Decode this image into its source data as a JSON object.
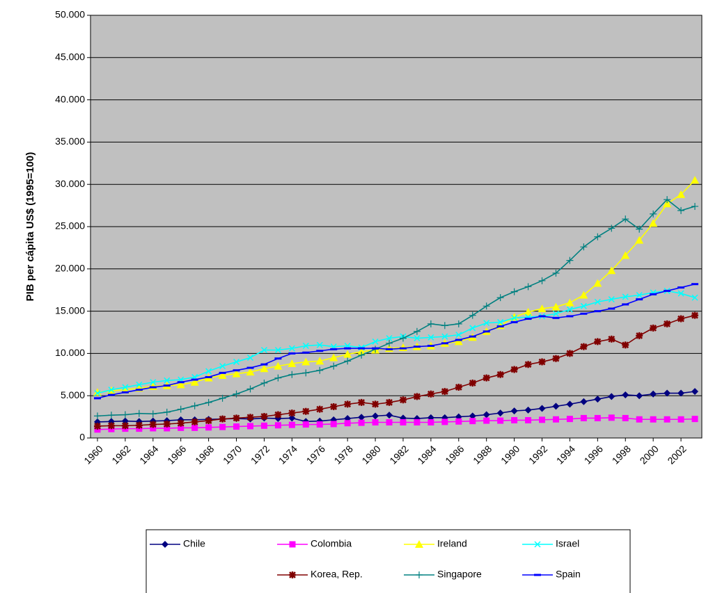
{
  "chart_data": {
    "type": "line",
    "y_label": "PIB per cápita US$ (1995=100)",
    "x": [
      1960,
      1961,
      1962,
      1963,
      1964,
      1965,
      1966,
      1967,
      1968,
      1969,
      1970,
      1971,
      1972,
      1973,
      1974,
      1975,
      1976,
      1977,
      1978,
      1979,
      1980,
      1981,
      1982,
      1983,
      1984,
      1985,
      1986,
      1987,
      1988,
      1989,
      1990,
      1991,
      1992,
      1993,
      1994,
      1995,
      1996,
      1997,
      1998,
      1999,
      2000,
      2001,
      2002,
      2003
    ],
    "xlim": [
      1959.5,
      2003.5
    ],
    "xticks": [
      1960,
      1962,
      1964,
      1966,
      1968,
      1970,
      1972,
      1974,
      1976,
      1978,
      1980,
      1982,
      1984,
      1986,
      1988,
      1990,
      1992,
      1994,
      1996,
      1998,
      2000,
      2002
    ],
    "ylim": [
      0,
      50000
    ],
    "yticks": [
      0,
      {
        "value": 5000,
        "label": "5.000"
      },
      {
        "value": 10000,
        "label": "10.000"
      },
      {
        "value": 15000,
        "label": "15.000"
      },
      {
        "value": 20000,
        "label": "20.000"
      },
      {
        "value": 25000,
        "label": "25.000"
      },
      {
        "value": 30000,
        "label": "30.000"
      },
      {
        "value": 35000,
        "label": "35.000"
      },
      {
        "value": 40000,
        "label": "40.000"
      },
      {
        "value": 45000,
        "label": "45.000"
      },
      {
        "value": 50000,
        "label": "50.000"
      }
    ],
    "grid": true,
    "plot_background": "#c0c0c0",
    "series": [
      {
        "name": "Chile",
        "color": "#000080",
        "marker": "diamond",
        "values": [
          1900,
          1950,
          2000,
          1950,
          2000,
          2050,
          2150,
          2150,
          2200,
          2250,
          2300,
          2250,
          2350,
          2300,
          2350,
          1950,
          2000,
          2150,
          2300,
          2450,
          2600,
          2700,
          2350,
          2300,
          2400,
          2400,
          2500,
          2600,
          2750,
          2950,
          3200,
          3300,
          3500,
          3750,
          4000,
          4300,
          4600,
          4900,
          5100,
          5000,
          5200,
          5300,
          5300,
          5500
        ]
      },
      {
        "name": "Colombia",
        "color": "#ff00ff",
        "marker": "square",
        "values": [
          1000,
          1050,
          1100,
          1100,
          1150,
          1150,
          1200,
          1200,
          1250,
          1300,
          1350,
          1400,
          1450,
          1500,
          1550,
          1600,
          1600,
          1650,
          1750,
          1800,
          1850,
          1850,
          1850,
          1850,
          1850,
          1900,
          1950,
          2000,
          2050,
          2050,
          2100,
          2100,
          2150,
          2200,
          2250,
          2350,
          2350,
          2400,
          2350,
          2200,
          2200,
          2200,
          2200,
          2250
        ]
      },
      {
        "name": "Ireland",
        "color": "#ffff00",
        "marker": "triangle",
        "values": [
          5400,
          5600,
          5700,
          5900,
          6100,
          6200,
          6300,
          6600,
          7100,
          7400,
          7600,
          7800,
          8200,
          8500,
          8800,
          9000,
          9100,
          9500,
          9900,
          10200,
          10400,
          10600,
          10700,
          10800,
          10900,
          11200,
          11400,
          11900,
          12600,
          13300,
          14300,
          14900,
          15300,
          15500,
          16000,
          16900,
          18300,
          19800,
          21600,
          23400,
          25400,
          27700,
          28800,
          30500
        ]
      },
      {
        "name": "Israel",
        "color": "#00ffff",
        "marker": "x",
        "values": [
          5300,
          5700,
          6000,
          6300,
          6600,
          6800,
          6900,
          7200,
          7900,
          8500,
          9000,
          9500,
          10400,
          10400,
          10600,
          10900,
          11000,
          10800,
          10900,
          10700,
          11400,
          11800,
          12000,
          11800,
          11900,
          12000,
          12200,
          13000,
          13600,
          13700,
          14200,
          14300,
          14400,
          14700,
          15200,
          15600,
          16100,
          16400,
          16700,
          16900,
          17200,
          17400,
          17100,
          16600
        ]
      },
      {
        "name": "Korea, Rep.",
        "color": "#800000",
        "marker": "star",
        "values": [
          1400,
          1450,
          1450,
          1500,
          1600,
          1650,
          1750,
          1900,
          2050,
          2250,
          2350,
          2450,
          2550,
          2750,
          2950,
          3150,
          3400,
          3700,
          4000,
          4200,
          4000,
          4200,
          4500,
          4900,
          5200,
          5500,
          6000,
          6500,
          7100,
          7500,
          8100,
          8700,
          9000,
          9400,
          10000,
          10800,
          11400,
          11700,
          11000,
          12100,
          13000,
          13500,
          14100,
          14500
        ]
      },
      {
        "name": "Singapore",
        "color": "#008080",
        "marker": "plus",
        "values": [
          2600,
          2700,
          2750,
          2900,
          2850,
          3050,
          3400,
          3800,
          4200,
          4700,
          5200,
          5800,
          6500,
          7100,
          7500,
          7700,
          8000,
          8500,
          9100,
          9800,
          10500,
          11200,
          11800,
          12600,
          13500,
          13300,
          13500,
          14500,
          15600,
          16600,
          17300,
          17900,
          18600,
          19500,
          21000,
          22600,
          23800,
          24800,
          25900,
          24700,
          26500,
          28200,
          26900,
          27400
        ]
      },
      {
        "name": "Spain",
        "color": "#0000ff",
        "marker": "dash",
        "values": [
          4700,
          5100,
          5400,
          5700,
          6000,
          6200,
          6600,
          6900,
          7200,
          7700,
          8000,
          8300,
          8700,
          9400,
          10000,
          10100,
          10300,
          10500,
          10600,
          10600,
          10600,
          10500,
          10600,
          10800,
          10900,
          11200,
          11600,
          12000,
          12600,
          13200,
          13700,
          14100,
          14400,
          14200,
          14400,
          14700,
          15000,
          15300,
          15800,
          16400,
          17000,
          17400,
          17800,
          18200
        ]
      }
    ]
  }
}
